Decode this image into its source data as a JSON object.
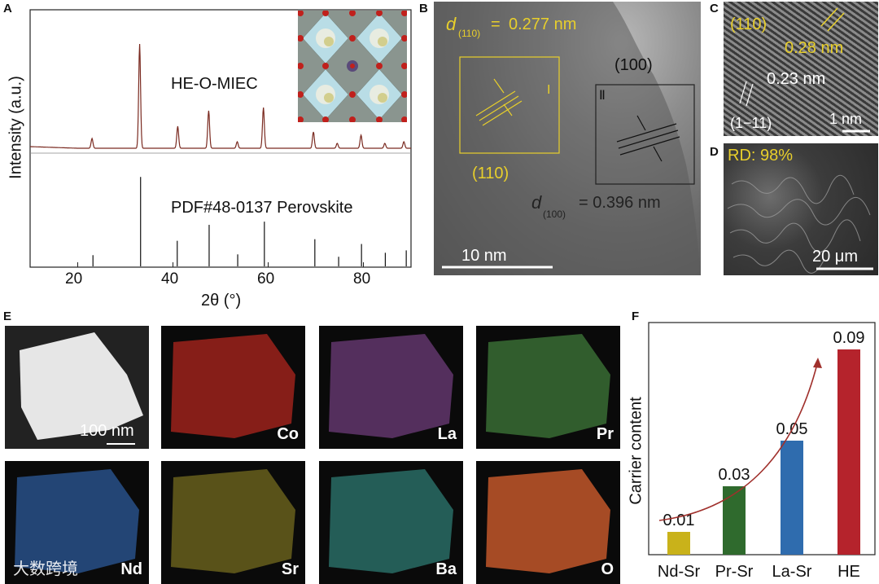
{
  "panels": {
    "A": "A",
    "B": "B",
    "C": "C",
    "D": "D",
    "E": "E",
    "F": "F"
  },
  "xrd": {
    "ylabel": "Intensity (a.u.)",
    "xlabel": "2θ (°)",
    "xticks": [
      "20",
      "40",
      "60",
      "80"
    ],
    "sample_label": "HE-O-MIEC",
    "ref_label": "PDF#48-0137 Perovskite"
  },
  "tem": {
    "d110": "0.277 nm",
    "d110_sub": "(110)",
    "d100": "= 0.396 nm",
    "d100_sub": "(100)",
    "d_letter": "d",
    "plane110": "(110)",
    "plane100": "(100)",
    "roman1": "I",
    "roman2": "Ⅱ",
    "scale": "10 nm"
  },
  "hrtem": {
    "plane110": "(110)",
    "d1": "0.28 nm",
    "d2": "0.23 nm",
    "plane1m11": "(1−11)",
    "scale": "1 nm"
  },
  "sem": {
    "rd": "RD: 98%",
    "scale": "20 μm"
  },
  "eds": {
    "scale": "100 nm",
    "watermark": "大数跨境",
    "elements": [
      "Co",
      "La",
      "Pr",
      "Nd",
      "Sr",
      "Ba",
      "O"
    ]
  },
  "chart_data": {
    "type": "bar",
    "categories": [
      "Nd-Sr",
      "Pr-Sr",
      "La-Sr",
      "HE"
    ],
    "values": [
      0.01,
      0.03,
      0.05,
      0.09
    ],
    "value_labels": [
      "0.01",
      "0.03",
      "0.05",
      "0.09"
    ],
    "ylabel": "Carrier content",
    "colors": [
      "#c9b21a",
      "#2f6a2d",
      "#2f6cae",
      "#b5232c"
    ]
  }
}
